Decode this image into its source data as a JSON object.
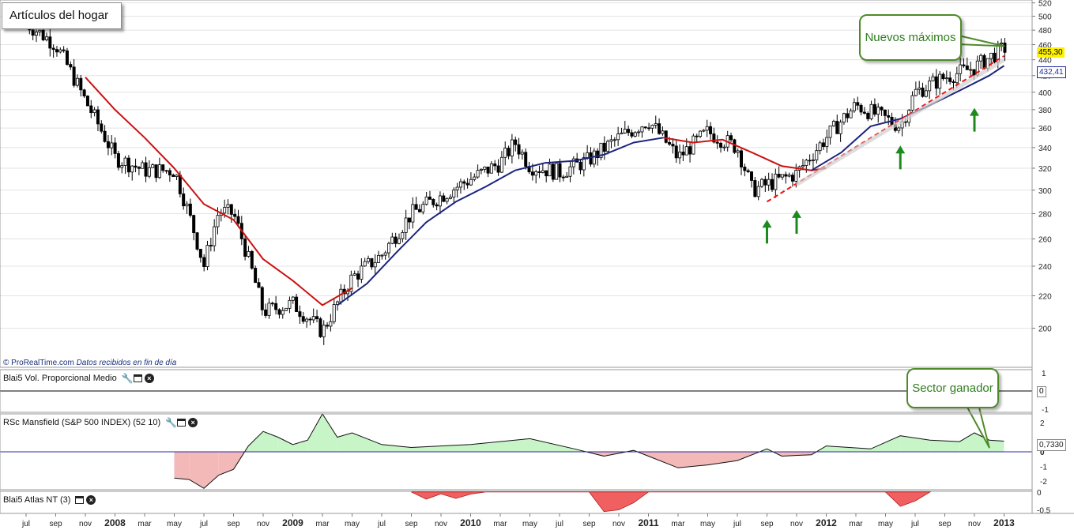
{
  "window": {
    "title": "Artículos del hogar"
  },
  "credit": {
    "source": "© ProRealTime.com",
    "note": "Datos recibidos en fin de día"
  },
  "annotations": {
    "callout_highs": "Nuevos máximos",
    "callout_sector": "Sector ganador"
  },
  "panels": {
    "volume": {
      "label": "Blai5 Vol. Proporcional Medio"
    },
    "rsc": {
      "label": "RSc Mansfield (S&P 500 INDEX) (52 10)"
    },
    "atlas": {
      "label": "Blai5 Atlas NT (3)"
    }
  },
  "icons": {
    "wrench": "wrench-icon",
    "window": "window-icon",
    "close": "close-icon",
    "arrow": "up-arrow-icon"
  },
  "colors": {
    "candle": "#000000",
    "ma_red": "#cc1111",
    "ma_blue": "#1a237e",
    "trend": "#ee1111",
    "rsc_pos": "#c8f5c8",
    "rsc_neg": "#f3b8b8",
    "atlas": "#f06060",
    "arrow": "#1d8a1d",
    "callout": "#4f8a2a",
    "last_tag": "#fff200"
  },
  "chart_data": [
    {
      "type": "candlestick",
      "frequency": "weekly",
      "x_ticks": [
        "jul",
        "sep",
        "nov",
        "2008",
        "mar",
        "may",
        "jul",
        "sep",
        "nov",
        "2009",
        "mar",
        "may",
        "jul",
        "sep",
        "nov",
        "2010",
        "mar",
        "may",
        "jul",
        "sep",
        "nov",
        "2011",
        "mar",
        "may",
        "jul",
        "sep",
        "nov",
        "2012",
        "mar",
        "may",
        "jul",
        "sep",
        "nov",
        "2013"
      ],
      "y_ticks": [
        200,
        220,
        240,
        260,
        280,
        300,
        320,
        340,
        360,
        380,
        400,
        420,
        440,
        460,
        480,
        500,
        520
      ],
      "y_range": [
        180,
        522
      ],
      "y_scale": "log",
      "last_value": "455,30",
      "ma_value": "432,41",
      "close_path": [
        {
          "x": "2007-07",
          "y": 490
        },
        {
          "x": "2007-09",
          "y": 460
        },
        {
          "x": "2007-11",
          "y": 390
        },
        {
          "x": "2008-01",
          "y": 330
        },
        {
          "x": "2008-03",
          "y": 318
        },
        {
          "x": "2008-05",
          "y": 318
        },
        {
          "x": "2008-07",
          "y": 240
        },
        {
          "x": "2008-08",
          "y": 282
        },
        {
          "x": "2008-09",
          "y": 280
        },
        {
          "x": "2008-11",
          "y": 210
        },
        {
          "x": "2009-01",
          "y": 215
        },
        {
          "x": "2009-03",
          "y": 198
        },
        {
          "x": "2009-05",
          "y": 232
        },
        {
          "x": "2009-07",
          "y": 248
        },
        {
          "x": "2009-09",
          "y": 280
        },
        {
          "x": "2009-11",
          "y": 295
        },
        {
          "x": "2010-01",
          "y": 310
        },
        {
          "x": "2010-03",
          "y": 325
        },
        {
          "x": "2010-04",
          "y": 345
        },
        {
          "x": "2010-05",
          "y": 322
        },
        {
          "x": "2010-07",
          "y": 316
        },
        {
          "x": "2010-09",
          "y": 328
        },
        {
          "x": "2010-11",
          "y": 350
        },
        {
          "x": "2011-01",
          "y": 368
        },
        {
          "x": "2011-03",
          "y": 330
        },
        {
          "x": "2011-05",
          "y": 356
        },
        {
          "x": "2011-07",
          "y": 340
        },
        {
          "x": "2011-08",
          "y": 300
        },
        {
          "x": "2011-10",
          "y": 310
        },
        {
          "x": "2011-11",
          "y": 315
        },
        {
          "x": "2012-01",
          "y": 350
        },
        {
          "x": "2012-03",
          "y": 385
        },
        {
          "x": "2012-05",
          "y": 370
        },
        {
          "x": "2012-06",
          "y": 362
        },
        {
          "x": "2012-07",
          "y": 400
        },
        {
          "x": "2012-09",
          "y": 418
        },
        {
          "x": "2012-11",
          "y": 430
        },
        {
          "x": "2013-01",
          "y": 455.3
        }
      ],
      "series": [
        {
          "name": "",
          "role": "ma-red",
          "points": [
            {
              "x": "2007-11",
              "y": 418
            },
            {
              "x": "2008-01",
              "y": 380
            },
            {
              "x": "2008-03",
              "y": 350
            },
            {
              "x": "2008-05",
              "y": 320
            },
            {
              "x": "2008-07",
              "y": 288
            },
            {
              "x": "2008-09",
              "y": 275
            },
            {
              "x": "2008-11",
              "y": 245
            },
            {
              "x": "2009-01",
              "y": 230
            },
            {
              "x": "2009-03",
              "y": 214
            },
            {
              "x": "2009-05",
              "y": 225
            }
          ]
        },
        {
          "name": "",
          "role": "ma-blue",
          "points": [
            {
              "x": "2009-04",
              "y": 214
            },
            {
              "x": "2009-06",
              "y": 228
            },
            {
              "x": "2009-08",
              "y": 250
            },
            {
              "x": "2009-10",
              "y": 273
            },
            {
              "x": "2009-12",
              "y": 290
            },
            {
              "x": "2010-02",
              "y": 303
            },
            {
              "x": "2010-04",
              "y": 318
            },
            {
              "x": "2010-06",
              "y": 325
            },
            {
              "x": "2010-08",
              "y": 327
            },
            {
              "x": "2010-10",
              "y": 333
            },
            {
              "x": "2010-12",
              "y": 345
            },
            {
              "x": "2011-02",
              "y": 350
            }
          ]
        },
        {
          "name": "",
          "role": "ma-red",
          "points": [
            {
              "x": "2011-02",
              "y": 350
            },
            {
              "x": "2011-04",
              "y": 345
            },
            {
              "x": "2011-06",
              "y": 348
            },
            {
              "x": "2011-08",
              "y": 335
            },
            {
              "x": "2011-10",
              "y": 322
            },
            {
              "x": "2011-12",
              "y": 318
            },
            {
              "x": "2012-01",
              "y": 320
            }
          ]
        },
        {
          "name": "",
          "role": "ma-blue",
          "points": [
            {
              "x": "2011-12",
              "y": 318
            },
            {
              "x": "2012-02",
              "y": 335
            },
            {
              "x": "2012-04",
              "y": 362
            },
            {
              "x": "2012-06",
              "y": 370
            },
            {
              "x": "2012-08",
              "y": 385
            },
            {
              "x": "2012-10",
              "y": 402
            },
            {
              "x": "2012-12",
              "y": 420
            },
            {
              "x": "2013-01",
              "y": 432.41
            }
          ]
        },
        {
          "name": "",
          "role": "trendline",
          "points": [
            {
              "x": "2011-09",
              "y": 290
            },
            {
              "x": "2013-01",
              "y": 445
            }
          ]
        },
        {
          "name": "",
          "role": "trendline-shadow",
          "points": [
            {
              "x": "2011-11",
              "y": 305
            },
            {
              "x": "2013-01",
              "y": 440
            }
          ]
        }
      ],
      "arrows": [
        {
          "x": "2011-09",
          "y": 275
        },
        {
          "x": "2011-11",
          "y": 283
        },
        {
          "x": "2012-06",
          "y": 342
        },
        {
          "x": "2012-11",
          "y": 382
        }
      ],
      "callouts": [
        {
          "text_key": "callout_highs",
          "target": {
            "x": "2013-01",
            "y": 458
          }
        },
        {
          "text_key": "callout_sector",
          "target_panel": "rsc",
          "target": {
            "x": "2012-12",
            "y": 0.3
          }
        }
      ]
    },
    {
      "type": "line",
      "name": "Blai5 Vol. Proporcional Medio",
      "y_ticks": [
        "1",
        "0",
        "-1"
      ],
      "values": [
        {
          "x": "2007-07",
          "y": 0
        },
        {
          "x": "2013-01",
          "y": 0
        }
      ]
    },
    {
      "type": "area",
      "name": "RSc Mansfield (S&P 500 INDEX) (52 10)",
      "y_ticks": [
        "2",
        "0",
        "-1",
        "-2"
      ],
      "y_range": [
        -2.6,
        2.6
      ],
      "last_value": "0,7330",
      "values": [
        {
          "x": "2008-05",
          "y": -1.8
        },
        {
          "x": "2008-06",
          "y": -1.9
        },
        {
          "x": "2008-07",
          "y": -2.5
        },
        {
          "x": "2008-08",
          "y": -1.6
        },
        {
          "x": "2008-09",
          "y": -1.2
        },
        {
          "x": "2008-10",
          "y": 0.4
        },
        {
          "x": "2008-11",
          "y": 1.4
        },
        {
          "x": "2008-12",
          "y": 1.0
        },
        {
          "x": "2009-01",
          "y": 0.5
        },
        {
          "x": "2009-02",
          "y": 0.8
        },
        {
          "x": "2009-03",
          "y": 2.6
        },
        {
          "x": "2009-04",
          "y": 1.0
        },
        {
          "x": "2009-05",
          "y": 1.3
        },
        {
          "x": "2009-07",
          "y": 0.5
        },
        {
          "x": "2009-09",
          "y": 0.3
        },
        {
          "x": "2010-01",
          "y": 0.5
        },
        {
          "x": "2010-05",
          "y": 0.9
        },
        {
          "x": "2010-08",
          "y": 0.2
        },
        {
          "x": "2010-10",
          "y": -0.3
        },
        {
          "x": "2010-12",
          "y": 0.1
        },
        {
          "x": "2011-01",
          "y": -0.3
        },
        {
          "x": "2011-03",
          "y": -1.1
        },
        {
          "x": "2011-05",
          "y": -0.9
        },
        {
          "x": "2011-07",
          "y": -0.6
        },
        {
          "x": "2011-09",
          "y": 0.2
        },
        {
          "x": "2011-10",
          "y": -0.3
        },
        {
          "x": "2011-12",
          "y": -0.2
        },
        {
          "x": "2012-01",
          "y": 0.4
        },
        {
          "x": "2012-04",
          "y": 0.2
        },
        {
          "x": "2012-06",
          "y": 1.1
        },
        {
          "x": "2012-08",
          "y": 0.8
        },
        {
          "x": "2012-10",
          "y": 0.7
        },
        {
          "x": "2012-11",
          "y": 1.3
        },
        {
          "x": "2012-12",
          "y": 0.8
        },
        {
          "x": "2013-01",
          "y": 0.733
        }
      ]
    },
    {
      "type": "area",
      "name": "Blai5 Atlas NT (3)",
      "y_ticks": [
        "0",
        "-0,5"
      ],
      "y_range": [
        -0.6,
        0.02
      ],
      "values": [
        {
          "x": "2009-09",
          "y": 0
        },
        {
          "x": "2009-10",
          "y": -0.2
        },
        {
          "x": "2009-11",
          "y": -0.05
        },
        {
          "x": "2009-12",
          "y": -0.18
        },
        {
          "x": "2010-01",
          "y": -0.06
        },
        {
          "x": "2010-02",
          "y": 0
        },
        {
          "x": "2010-09",
          "y": 0
        },
        {
          "x": "2010-10",
          "y": -0.55
        },
        {
          "x": "2010-11",
          "y": -0.5
        },
        {
          "x": "2010-12",
          "y": -0.3
        },
        {
          "x": "2011-01",
          "y": 0
        },
        {
          "x": "2012-05",
          "y": 0
        },
        {
          "x": "2012-06",
          "y": -0.4
        },
        {
          "x": "2012-07",
          "y": -0.25
        },
        {
          "x": "2012-08",
          "y": 0
        }
      ]
    }
  ]
}
